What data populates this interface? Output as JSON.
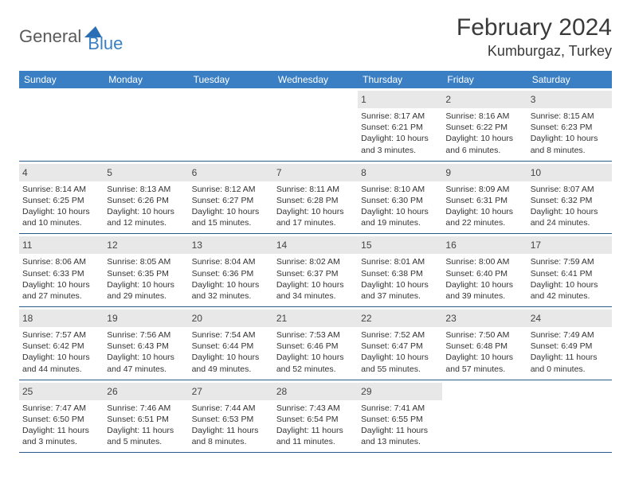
{
  "logo": {
    "general": "General",
    "blue": "Blue"
  },
  "title": "February 2024",
  "location": "Kumburgaz, Turkey",
  "colors": {
    "header_bg": "#3a7fc4",
    "daynum_bg": "#e8e8e8",
    "rule": "#2a5a8a",
    "text": "#333333"
  },
  "day_labels": [
    "Sunday",
    "Monday",
    "Tuesday",
    "Wednesday",
    "Thursday",
    "Friday",
    "Saturday"
  ],
  "weeks": [
    [
      {
        "empty": true
      },
      {
        "empty": true
      },
      {
        "empty": true
      },
      {
        "empty": true
      },
      {
        "n": "1",
        "sr": "Sunrise: 8:17 AM",
        "ss": "Sunset: 6:21 PM",
        "d1": "Daylight: 10 hours",
        "d2": "and 3 minutes."
      },
      {
        "n": "2",
        "sr": "Sunrise: 8:16 AM",
        "ss": "Sunset: 6:22 PM",
        "d1": "Daylight: 10 hours",
        "d2": "and 6 minutes."
      },
      {
        "n": "3",
        "sr": "Sunrise: 8:15 AM",
        "ss": "Sunset: 6:23 PM",
        "d1": "Daylight: 10 hours",
        "d2": "and 8 minutes."
      }
    ],
    [
      {
        "n": "4",
        "sr": "Sunrise: 8:14 AM",
        "ss": "Sunset: 6:25 PM",
        "d1": "Daylight: 10 hours",
        "d2": "and 10 minutes."
      },
      {
        "n": "5",
        "sr": "Sunrise: 8:13 AM",
        "ss": "Sunset: 6:26 PM",
        "d1": "Daylight: 10 hours",
        "d2": "and 12 minutes."
      },
      {
        "n": "6",
        "sr": "Sunrise: 8:12 AM",
        "ss": "Sunset: 6:27 PM",
        "d1": "Daylight: 10 hours",
        "d2": "and 15 minutes."
      },
      {
        "n": "7",
        "sr": "Sunrise: 8:11 AM",
        "ss": "Sunset: 6:28 PM",
        "d1": "Daylight: 10 hours",
        "d2": "and 17 minutes."
      },
      {
        "n": "8",
        "sr": "Sunrise: 8:10 AM",
        "ss": "Sunset: 6:30 PM",
        "d1": "Daylight: 10 hours",
        "d2": "and 19 minutes."
      },
      {
        "n": "9",
        "sr": "Sunrise: 8:09 AM",
        "ss": "Sunset: 6:31 PM",
        "d1": "Daylight: 10 hours",
        "d2": "and 22 minutes."
      },
      {
        "n": "10",
        "sr": "Sunrise: 8:07 AM",
        "ss": "Sunset: 6:32 PM",
        "d1": "Daylight: 10 hours",
        "d2": "and 24 minutes."
      }
    ],
    [
      {
        "n": "11",
        "sr": "Sunrise: 8:06 AM",
        "ss": "Sunset: 6:33 PM",
        "d1": "Daylight: 10 hours",
        "d2": "and 27 minutes."
      },
      {
        "n": "12",
        "sr": "Sunrise: 8:05 AM",
        "ss": "Sunset: 6:35 PM",
        "d1": "Daylight: 10 hours",
        "d2": "and 29 minutes."
      },
      {
        "n": "13",
        "sr": "Sunrise: 8:04 AM",
        "ss": "Sunset: 6:36 PM",
        "d1": "Daylight: 10 hours",
        "d2": "and 32 minutes."
      },
      {
        "n": "14",
        "sr": "Sunrise: 8:02 AM",
        "ss": "Sunset: 6:37 PM",
        "d1": "Daylight: 10 hours",
        "d2": "and 34 minutes."
      },
      {
        "n": "15",
        "sr": "Sunrise: 8:01 AM",
        "ss": "Sunset: 6:38 PM",
        "d1": "Daylight: 10 hours",
        "d2": "and 37 minutes."
      },
      {
        "n": "16",
        "sr": "Sunrise: 8:00 AM",
        "ss": "Sunset: 6:40 PM",
        "d1": "Daylight: 10 hours",
        "d2": "and 39 minutes."
      },
      {
        "n": "17",
        "sr": "Sunrise: 7:59 AM",
        "ss": "Sunset: 6:41 PM",
        "d1": "Daylight: 10 hours",
        "d2": "and 42 minutes."
      }
    ],
    [
      {
        "n": "18",
        "sr": "Sunrise: 7:57 AM",
        "ss": "Sunset: 6:42 PM",
        "d1": "Daylight: 10 hours",
        "d2": "and 44 minutes."
      },
      {
        "n": "19",
        "sr": "Sunrise: 7:56 AM",
        "ss": "Sunset: 6:43 PM",
        "d1": "Daylight: 10 hours",
        "d2": "and 47 minutes."
      },
      {
        "n": "20",
        "sr": "Sunrise: 7:54 AM",
        "ss": "Sunset: 6:44 PM",
        "d1": "Daylight: 10 hours",
        "d2": "and 49 minutes."
      },
      {
        "n": "21",
        "sr": "Sunrise: 7:53 AM",
        "ss": "Sunset: 6:46 PM",
        "d1": "Daylight: 10 hours",
        "d2": "and 52 minutes."
      },
      {
        "n": "22",
        "sr": "Sunrise: 7:52 AM",
        "ss": "Sunset: 6:47 PM",
        "d1": "Daylight: 10 hours",
        "d2": "and 55 minutes."
      },
      {
        "n": "23",
        "sr": "Sunrise: 7:50 AM",
        "ss": "Sunset: 6:48 PM",
        "d1": "Daylight: 10 hours",
        "d2": "and 57 minutes."
      },
      {
        "n": "24",
        "sr": "Sunrise: 7:49 AM",
        "ss": "Sunset: 6:49 PM",
        "d1": "Daylight: 11 hours",
        "d2": "and 0 minutes."
      }
    ],
    [
      {
        "n": "25",
        "sr": "Sunrise: 7:47 AM",
        "ss": "Sunset: 6:50 PM",
        "d1": "Daylight: 11 hours",
        "d2": "and 3 minutes."
      },
      {
        "n": "26",
        "sr": "Sunrise: 7:46 AM",
        "ss": "Sunset: 6:51 PM",
        "d1": "Daylight: 11 hours",
        "d2": "and 5 minutes."
      },
      {
        "n": "27",
        "sr": "Sunrise: 7:44 AM",
        "ss": "Sunset: 6:53 PM",
        "d1": "Daylight: 11 hours",
        "d2": "and 8 minutes."
      },
      {
        "n": "28",
        "sr": "Sunrise: 7:43 AM",
        "ss": "Sunset: 6:54 PM",
        "d1": "Daylight: 11 hours",
        "d2": "and 11 minutes."
      },
      {
        "n": "29",
        "sr": "Sunrise: 7:41 AM",
        "ss": "Sunset: 6:55 PM",
        "d1": "Daylight: 11 hours",
        "d2": "and 13 minutes."
      },
      {
        "empty": true
      },
      {
        "empty": true
      }
    ]
  ]
}
